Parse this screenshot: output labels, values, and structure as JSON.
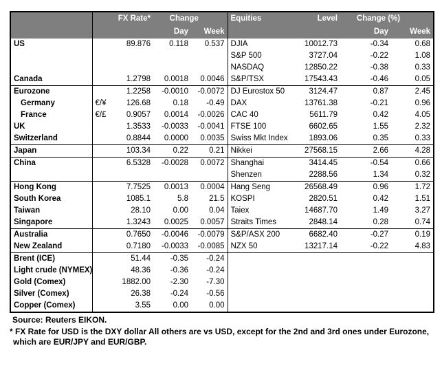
{
  "colors": {
    "header_bg": "#7F7F7F",
    "header_text": "#FFFFFF",
    "border": "#000000",
    "text": "#000000",
    "background": "#FFFFFF"
  },
  "header": {
    "fx_rate": "FX Rate*",
    "change": "Change",
    "day": "Day",
    "week": "Week",
    "equities": "Equities",
    "level": "Level",
    "change_pct": "Change (%)"
  },
  "rows": [
    {
      "label": "US",
      "prefix": "",
      "fx": "89.876",
      "day": "0.118",
      "week": "0.537",
      "equity": "DJIA",
      "level": "10012.73",
      "eday": "-0.34",
      "eweek": "0.68",
      "indent": false,
      "group_start": false
    },
    {
      "label": "",
      "prefix": "",
      "fx": "",
      "day": "",
      "week": "",
      "equity": "S&P 500",
      "level": "3727.04",
      "eday": "-0.22",
      "eweek": "1.08",
      "indent": false,
      "group_start": false
    },
    {
      "label": "",
      "prefix": "",
      "fx": "",
      "day": "",
      "week": "",
      "equity": "NASDAQ",
      "level": "12850.22",
      "eday": "-0.38",
      "eweek": "0.33",
      "indent": false,
      "group_start": false
    },
    {
      "label": "Canada",
      "prefix": "",
      "fx": "1.2798",
      "day": "0.0018",
      "week": "0.0046",
      "equity": "S&P/TSX",
      "level": "17543.43",
      "eday": "-0.46",
      "eweek": "0.05",
      "indent": false,
      "group_start": false
    },
    {
      "label": "Eurozone",
      "prefix": "",
      "fx": "1.2258",
      "day": "-0.0010",
      "week": "-0.0072",
      "equity": "DJ Eurostox 50",
      "level": "3124.47",
      "eday": "0.87",
      "eweek": "2.45",
      "indent": false,
      "group_start": true
    },
    {
      "label": "Germany",
      "prefix": "€/¥",
      "fx": "126.68",
      "day": "0.18",
      "week": "-0.49",
      "equity": "DAX",
      "level": "13761.38",
      "eday": "-0.21",
      "eweek": "0.96",
      "indent": true,
      "group_start": false
    },
    {
      "label": "France",
      "prefix": "€/£",
      "fx": "0.9057",
      "day": "0.0014",
      "week": "-0.0026",
      "equity": "CAC 40",
      "level": "5611.79",
      "eday": "0.42",
      "eweek": "4.05",
      "indent": true,
      "group_start": false
    },
    {
      "label": "UK",
      "prefix": "",
      "fx": "1.3533",
      "day": "-0.0033",
      "week": "-0.0041",
      "equity": "FTSE 100",
      "level": "6602.65",
      "eday": "1.55",
      "eweek": "2.32",
      "indent": false,
      "group_start": false
    },
    {
      "label": "Switzerland",
      "prefix": "",
      "fx": "0.8844",
      "day": "0.0000",
      "week": "0.0035",
      "equity": "Swiss Mkt Index",
      "level": "1893.06",
      "eday": "0.35",
      "eweek": "0.33",
      "indent": false,
      "group_start": false
    },
    {
      "label": "Japan",
      "prefix": "",
      "fx": "103.34",
      "day": "0.22",
      "week": "0.21",
      "equity": "Nikkei",
      "level": "27568.15",
      "eday": "2.66",
      "eweek": "4.28",
      "indent": false,
      "group_start": true
    },
    {
      "label": "China",
      "prefix": "",
      "fx": "6.5328",
      "day": "-0.0028",
      "week": "0.0072",
      "equity": "Shanghai",
      "level": "3414.45",
      "eday": "-0.54",
      "eweek": "0.66",
      "indent": false,
      "group_start": true
    },
    {
      "label": "",
      "prefix": "",
      "fx": "",
      "day": "",
      "week": "",
      "equity": "Shenzen",
      "level": "2288.56",
      "eday": "1.34",
      "eweek": "0.32",
      "indent": false,
      "group_start": false
    },
    {
      "label": "Hong Kong",
      "prefix": "",
      "fx": "7.7525",
      "day": "0.0013",
      "week": "0.0004",
      "equity": "Hang Seng",
      "level": "26568.49",
      "eday": "0.96",
      "eweek": "1.72",
      "indent": false,
      "group_start": true
    },
    {
      "label": "South Korea",
      "prefix": "",
      "fx": "1085.1",
      "day": "5.8",
      "week": "21.5",
      "equity": "KOSPI",
      "level": "2820.51",
      "eday": "0.42",
      "eweek": "1.51",
      "indent": false,
      "group_start": false
    },
    {
      "label": "Taiwan",
      "prefix": "",
      "fx": "28.10",
      "day": "0.00",
      "week": "0.04",
      "equity": "Taiex",
      "level": "14687.70",
      "eday": "1.49",
      "eweek": "3.27",
      "indent": false,
      "group_start": false
    },
    {
      "label": "Singapore",
      "prefix": "",
      "fx": "1.3243",
      "day": "0.0025",
      "week": "0.0057",
      "equity": "Straits Times",
      "level": "2848.14",
      "eday": "0.28",
      "eweek": "0.74",
      "indent": false,
      "group_start": false
    },
    {
      "label": "Australia",
      "prefix": "",
      "fx": "0.7650",
      "day": "-0.0046",
      "week": "-0.0079",
      "equity": "S&P/ASX 200",
      "level": "6682.40",
      "eday": "-0.27",
      "eweek": "0.19",
      "indent": false,
      "group_start": true
    },
    {
      "label": "New Zealand",
      "prefix": "",
      "fx": "0.7180",
      "day": "-0.0033",
      "week": "-0.0085",
      "equity": "NZX 50",
      "level": "13217.14",
      "eday": "-0.22",
      "eweek": "4.83",
      "indent": false,
      "group_start": false
    },
    {
      "label": "Brent (ICE)",
      "prefix": "",
      "fx": "51.44",
      "day": "-0.35",
      "week": "-0.24",
      "equity": "",
      "level": "",
      "eday": "",
      "eweek": "",
      "indent": false,
      "group_start": true
    },
    {
      "label": "Light crude (NYMEX)",
      "prefix": "",
      "fx": "48.36",
      "day": "-0.36",
      "week": "-0.24",
      "equity": "",
      "level": "",
      "eday": "",
      "eweek": "",
      "indent": false,
      "group_start": false
    },
    {
      "label": "Gold (Comex)",
      "prefix": "",
      "fx": "1882.00",
      "day": "-2.30",
      "week": "-7.30",
      "equity": "",
      "level": "",
      "eday": "",
      "eweek": "",
      "indent": false,
      "group_start": false
    },
    {
      "label": "Silver (Comex)",
      "prefix": "",
      "fx": "26.38",
      "day": "-0.24",
      "week": "-0.56",
      "equity": "",
      "level": "",
      "eday": "",
      "eweek": "",
      "indent": false,
      "group_start": false
    },
    {
      "label": "Copper (Comex)",
      "prefix": "",
      "fx": "3.55",
      "day": "0.00",
      "week": "0.00",
      "equity": "",
      "level": "",
      "eday": "",
      "eweek": "",
      "indent": false,
      "group_start": false
    }
  ],
  "footer": {
    "source": "Source:  Reuters EIKON.",
    "note_line1": "* FX Rate for USD is the DXY dollar  All others are vs USD, except for the 2nd and 3rd ones under Eurozone,",
    "note_line2": "which are EUR/JPY and EUR/GBP."
  }
}
